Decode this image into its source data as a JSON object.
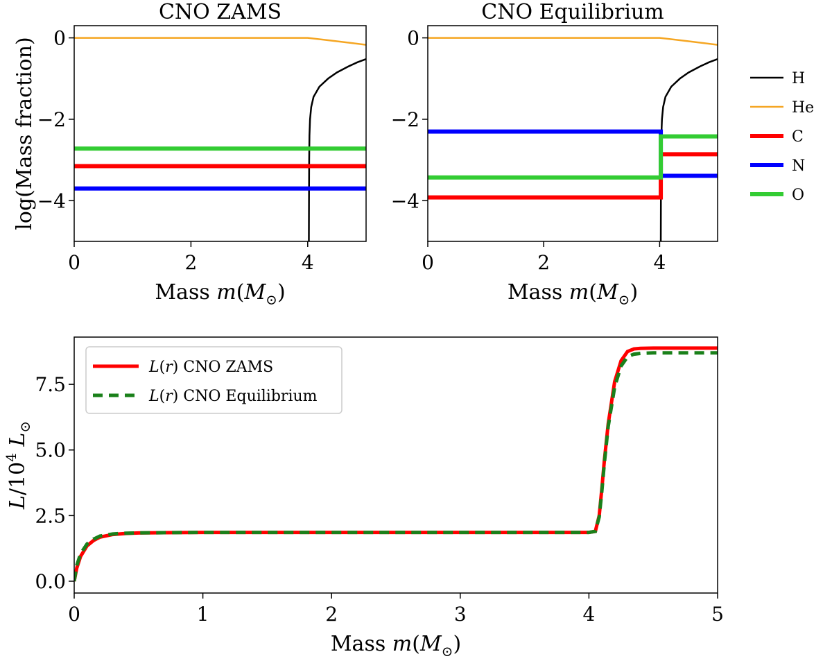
{
  "chart_data": [
    {
      "type": "line",
      "title": "CNO ZAMS",
      "xlabel": "Mass m(M⊙)",
      "ylabel": "log(Mass fraction)",
      "xlim": [
        0,
        5
      ],
      "ylim": [
        -5,
        0.3
      ],
      "xticks": [
        "0",
        "2",
        "4"
      ],
      "yticks": [
        "0",
        "−2",
        "−4"
      ],
      "series": [
        {
          "name": "H",
          "color": "#000000",
          "width": 2.5,
          "x": [
            4.02,
            4.022,
            4.025,
            4.03,
            4.04,
            4.06,
            4.1,
            4.2,
            4.35,
            4.5,
            4.7,
            4.85,
            5.0
          ],
          "y": [
            -5.0,
            -4.0,
            -3.0,
            -2.4,
            -2.0,
            -1.7,
            -1.45,
            -1.2,
            -1.0,
            -0.85,
            -0.7,
            -0.6,
            -0.52
          ]
        },
        {
          "name": "He",
          "color": "#f5a623",
          "width": 2.5,
          "x": [
            0,
            4.0,
            4.3,
            4.6,
            5.0
          ],
          "y": [
            0,
            0,
            -0.05,
            -0.1,
            -0.17
          ]
        },
        {
          "name": "C",
          "color": "#ff0000",
          "width": 6,
          "x": [
            0,
            5.0
          ],
          "y": [
            -3.15,
            -3.15
          ]
        },
        {
          "name": "N",
          "color": "#0000ff",
          "width": 6,
          "x": [
            0,
            5.0
          ],
          "y": [
            -3.7,
            -3.7
          ]
        },
        {
          "name": "O",
          "color": "#33cc33",
          "width": 6,
          "x": [
            0,
            5.0
          ],
          "y": [
            -2.72,
            -2.72
          ]
        }
      ]
    },
    {
      "type": "line",
      "title": "CNO Equilibrium",
      "xlabel": "Mass m(M⊙)",
      "ylabel": "",
      "xlim": [
        0,
        5
      ],
      "ylim": [
        -5,
        0.3
      ],
      "xticks": [
        "0",
        "2",
        "4"
      ],
      "yticks": [
        "0",
        "−2",
        "−4"
      ],
      "series": [
        {
          "name": "H",
          "color": "#000000",
          "width": 2.5,
          "x": [
            4.02,
            4.022,
            4.025,
            4.03,
            4.04,
            4.06,
            4.1,
            4.2,
            4.35,
            4.5,
            4.7,
            4.85,
            5.0
          ],
          "y": [
            -5.0,
            -4.0,
            -3.0,
            -2.4,
            -2.0,
            -1.7,
            -1.45,
            -1.2,
            -1.0,
            -0.85,
            -0.7,
            -0.6,
            -0.52
          ]
        },
        {
          "name": "He",
          "color": "#f5a623",
          "width": 2.5,
          "x": [
            0,
            4.0,
            4.3,
            4.6,
            5.0
          ],
          "y": [
            0,
            0,
            -0.05,
            -0.1,
            -0.17
          ]
        },
        {
          "name": "C",
          "color": "#ff0000",
          "width": 6,
          "x": [
            0,
            4.02,
            4.02,
            5.0
          ],
          "y": [
            -3.92,
            -3.92,
            -2.86,
            -2.86
          ]
        },
        {
          "name": "N",
          "color": "#0000ff",
          "width": 6,
          "x": [
            0,
            4.02,
            4.02,
            5.0
          ],
          "y": [
            -2.3,
            -2.3,
            -3.39,
            -3.39
          ]
        },
        {
          "name": "O",
          "color": "#33cc33",
          "width": 6,
          "x": [
            0,
            4.02,
            4.02,
            5.0
          ],
          "y": [
            -3.43,
            -3.43,
            -2.42,
            -2.42
          ]
        }
      ]
    },
    {
      "type": "line",
      "title": "",
      "xlabel": "Mass m(M⊙)",
      "ylabel": "L/10⁴ L⊙",
      "xlim": [
        0,
        5
      ],
      "ylim": [
        -0.45,
        9.3
      ],
      "xticks": [
        "0",
        "1",
        "2",
        "3",
        "4",
        "5"
      ],
      "yticks": [
        "0.0",
        "2.5",
        "5.0",
        "7.5"
      ],
      "legend_position": "upper-left",
      "series": [
        {
          "name": "L(r) CNO ZAMS",
          "color": "#ff0000",
          "width": 5,
          "dash": "",
          "x": [
            0,
            0.02,
            0.05,
            0.1,
            0.15,
            0.2,
            0.3,
            0.4,
            0.5,
            0.7,
            1.0,
            2.0,
            3.0,
            4.0,
            4.05,
            4.08,
            4.1,
            4.12,
            4.15,
            4.2,
            4.25,
            4.3,
            4.35,
            4.4,
            4.5,
            5.0
          ],
          "y": [
            0,
            0.5,
            0.95,
            1.35,
            1.55,
            1.68,
            1.78,
            1.82,
            1.84,
            1.85,
            1.86,
            1.86,
            1.86,
            1.86,
            1.9,
            2.5,
            3.5,
            4.6,
            6.0,
            7.6,
            8.4,
            8.75,
            8.85,
            8.87,
            8.88,
            8.88
          ]
        },
        {
          "name": "L(r) CNO Equilibrium",
          "color": "#1a801a",
          "width": 5,
          "dash": "14 9",
          "x": [
            0,
            0.02,
            0.05,
            0.1,
            0.15,
            0.2,
            0.3,
            0.4,
            0.5,
            0.7,
            1.0,
            2.0,
            3.0,
            4.0,
            4.05,
            4.08,
            4.1,
            4.12,
            4.15,
            4.2,
            4.25,
            4.3,
            4.35,
            4.4,
            4.5,
            5.0
          ],
          "y": [
            0,
            0.6,
            1.05,
            1.42,
            1.6,
            1.72,
            1.8,
            1.83,
            1.84,
            1.85,
            1.86,
            1.86,
            1.86,
            1.86,
            1.9,
            2.45,
            3.4,
            4.5,
            5.9,
            7.4,
            8.2,
            8.55,
            8.65,
            8.68,
            8.7,
            8.7
          ]
        }
      ]
    }
  ],
  "legends": {
    "top": {
      "entries": [
        {
          "label": "H",
          "color": "#000000",
          "width": 2.5
        },
        {
          "label": "He",
          "color": "#f5a623",
          "width": 2.5
        },
        {
          "label": "C",
          "color": "#ff0000",
          "width": 6
        },
        {
          "label": "N",
          "color": "#0000ff",
          "width": 6
        },
        {
          "label": "O",
          "color": "#33cc33",
          "width": 6
        }
      ]
    },
    "bottom": {
      "entries": [
        {
          "label": "L(r) CNO ZAMS",
          "color": "#ff0000",
          "width": 5,
          "dash": ""
        },
        {
          "label": "L(r) CNO Equilibrium",
          "color": "#1a801a",
          "width": 5,
          "dash": "14 9"
        }
      ]
    }
  }
}
